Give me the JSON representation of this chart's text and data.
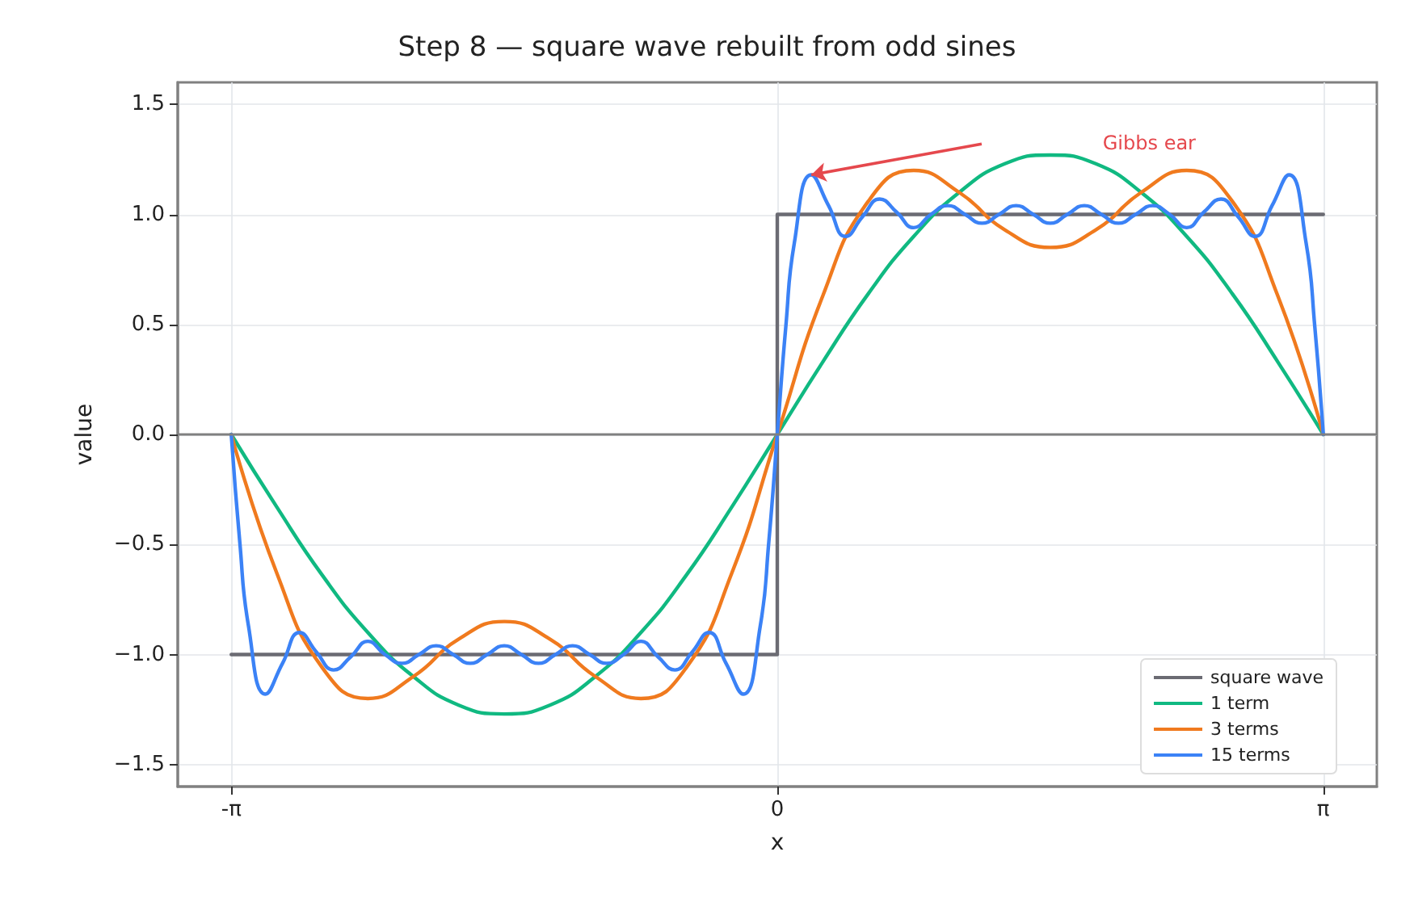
{
  "chart_data": {
    "type": "line",
    "title": "Step 8 — square wave rebuilt from odd sines",
    "xlabel": "x",
    "ylabel": "value",
    "xlim": [
      -3.45,
      3.45
    ],
    "xticks": [
      {
        "value": -3.1416,
        "label": "-π"
      },
      0,
      {
        "value": 3.1416,
        "label": "π"
      }
    ],
    "ylim": [
      -1.6,
      1.6
    ],
    "yticks": [
      {
        "value": -1.5,
        "label": "−1.5"
      },
      {
        "value": -1.0,
        "label": "−1.0"
      },
      {
        "value": -0.5,
        "label": "−0.5"
      },
      {
        "value": 0,
        "label": "0.0"
      },
      {
        "value": 0.5,
        "label": "0.5"
      },
      {
        "value": 1.0,
        "label": "1.0"
      },
      {
        "value": 1.5,
        "label": "1.5"
      }
    ],
    "grid": true,
    "legend": "bottom right",
    "marker": "none",
    "line_style": "solid",
    "ref_lines": [
      {
        "axis": "y",
        "value": 0,
        "color": "#808080"
      }
    ],
    "annotations": [
      "Gibbs ear"
    ],
    "series": [
      {
        "name": "square wave",
        "type": "step",
        "color": "#6b6b73",
        "x": [
          -3.142,
          0,
          3.142
        ],
        "values": [
          -1,
          1,
          1
        ]
      },
      {
        "name": "1 term",
        "color": "#10b981",
        "x": [
          -3.142,
          -2.88,
          -2.618,
          -2.356,
          -2.094,
          -1.833,
          -1.571,
          -1.309,
          -1.047,
          -0.785,
          -0.524,
          -0.262,
          0,
          0.262,
          0.524,
          0.785,
          1.047,
          1.309,
          1.571,
          1.833,
          2.094,
          2.356,
          2.618,
          2.88,
          3.142
        ],
        "values": [
          0,
          -0.33,
          -0.64,
          -0.9,
          -1.1,
          -1.23,
          -1.27,
          -1.23,
          -1.1,
          -0.9,
          -0.64,
          -0.33,
          0,
          0.33,
          0.64,
          0.9,
          1.1,
          1.23,
          1.27,
          1.23,
          1.1,
          0.9,
          0.64,
          0.33,
          0
        ]
      },
      {
        "name": "3 terms",
        "color": "#f07a1e",
        "x": [
          -3.142,
          -2.88,
          -2.618,
          -2.356,
          -2.094,
          -1.833,
          -1.571,
          -1.309,
          -1.047,
          -0.785,
          -0.524,
          -0.262,
          0,
          0.262,
          0.524,
          0.785,
          1.047,
          1.309,
          1.571,
          1.833,
          2.094,
          2.356,
          2.618,
          2.88,
          3.142
        ],
        "values": [
          0,
          -0.63,
          -1.06,
          -1.2,
          -1.1,
          -0.93,
          -0.85,
          -0.93,
          -1.1,
          -1.2,
          -1.06,
          -0.63,
          0,
          0.63,
          1.06,
          1.2,
          1.1,
          0.93,
          0.85,
          0.93,
          1.1,
          1.2,
          1.06,
          0.63,
          0
        ]
      },
      {
        "name": "15 terms",
        "color": "#3b82f6",
        "x": [
          -3.142,
          -3.093,
          -3.043,
          -2.945,
          -2.847,
          -2.749,
          -2.651,
          -2.553,
          -2.454,
          -2.356,
          -2.258,
          -2.16,
          -2.062,
          -1.963,
          -1.865,
          -1.767,
          -1.669,
          -1.571,
          -1.473,
          -1.374,
          -1.276,
          -1.178,
          -1.08,
          -0.982,
          -0.884,
          -0.785,
          -0.687,
          -0.589,
          -0.491,
          -0.393,
          -0.295,
          -0.196,
          -0.098,
          -0.049,
          0,
          0.049,
          0.098,
          0.196,
          0.295,
          0.393,
          0.491,
          0.589,
          0.687,
          0.785,
          0.884,
          0.982,
          1.08,
          1.178,
          1.276,
          1.374,
          1.473,
          1.571,
          1.669,
          1.767,
          1.865,
          1.963,
          2.062,
          2.16,
          2.258,
          2.356,
          2.454,
          2.553,
          2.651,
          2.749,
          2.847,
          2.945,
          3.043,
          3.093,
          3.142
        ],
        "values": [
          0,
          -0.49,
          -0.87,
          -1.18,
          -1.04,
          -0.9,
          -0.99,
          -1.07,
          -1.01,
          -0.94,
          -1.0,
          -1.04,
          -1.0,
          -0.96,
          -1.0,
          -1.04,
          -1.0,
          -0.96,
          -1.0,
          -1.04,
          -1.0,
          -0.96,
          -1.0,
          -1.04,
          -1.0,
          -0.94,
          -1.01,
          -1.07,
          -0.99,
          -0.9,
          -1.04,
          -1.18,
          -0.87,
          -0.49,
          0,
          0.49,
          0.87,
          1.18,
          1.04,
          0.9,
          0.99,
          1.07,
          1.01,
          0.94,
          1.0,
          1.04,
          1.0,
          0.96,
          1.0,
          1.04,
          1.0,
          0.96,
          1.0,
          1.04,
          1.0,
          0.96,
          1.0,
          1.04,
          1.0,
          0.94,
          1.01,
          1.07,
          0.99,
          0.9,
          1.04,
          1.18,
          0.87,
          0.49,
          0
        ]
      }
    ]
  }
}
